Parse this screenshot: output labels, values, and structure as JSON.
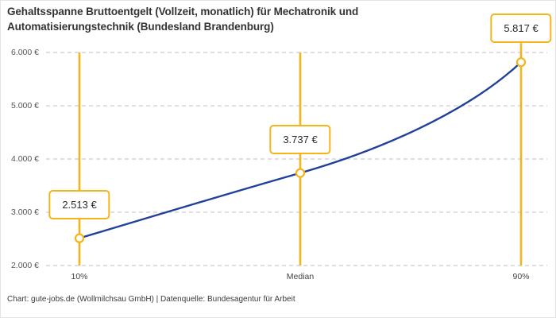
{
  "title": {
    "line1": "Gehaltsspanne Bruttoentgelt (Vollzeit, monatlich) für Mechatronik und",
    "line2": "Automatisierungstechnik (Bundesland Brandenburg)"
  },
  "chart_data": {
    "type": "line",
    "title": "Gehaltsspanne Bruttoentgelt (Vollzeit, monatlich) für Mechatronik und Automatisierungstechnik (Bundesland Brandenburg)",
    "categories": [
      "10%",
      "Median",
      "90%"
    ],
    "values": [
      2513,
      3737,
      5817
    ],
    "point_labels": [
      "2.513 €",
      "3.737 €",
      "5.817 €"
    ],
    "series": [
      {
        "name": "Bruttoentgelt",
        "values": [
          2513,
          3737,
          5817
        ]
      }
    ],
    "y_ticks": [
      {
        "value": 6000,
        "label": "6.000 €"
      },
      {
        "value": 5000,
        "label": "5.000 €"
      },
      {
        "value": 4000,
        "label": "4.000 €"
      },
      {
        "value": 3000,
        "label": "3.000 €"
      },
      {
        "value": 2000,
        "label": "2.000 €"
      }
    ],
    "ylim": [
      2000,
      6000
    ],
    "xlabel": "",
    "ylabel": "",
    "grid": "horizontal-dashed",
    "legend": "none",
    "marker_style": "open-circle-on-vertical-rule"
  },
  "footer": {
    "text": "Chart: gute-jobs.de (Wollmilchsau GmbH) | Datenquelle: Bundesagentur für Arbeit"
  },
  "colors": {
    "accent_yellow": "#f4b41a",
    "line_blue": "#21409a",
    "gridline_gray": "#cccccc",
    "title_text": "#333333",
    "axis_text": "#555555",
    "footer_text": "#3a3a3a",
    "background": "#ffffff"
  }
}
